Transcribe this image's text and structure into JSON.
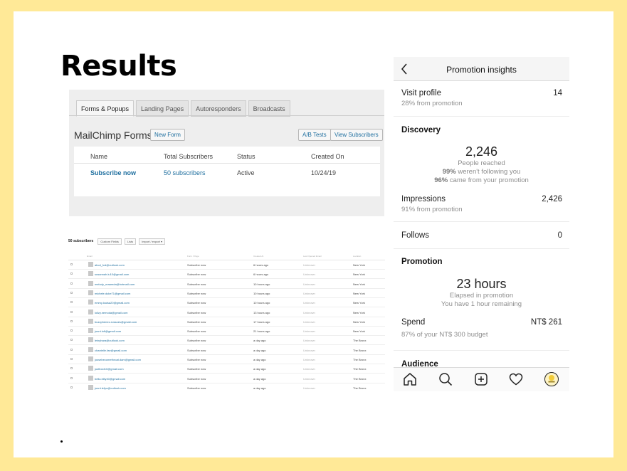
{
  "slide": {
    "title": "Results"
  },
  "mailchimp": {
    "tabs": [
      {
        "label": "Forms & Popups",
        "active": true
      },
      {
        "label": "Landing Pages",
        "active": false
      },
      {
        "label": "Autoresponders",
        "active": false
      },
      {
        "label": "Broadcasts",
        "active": false
      }
    ],
    "heading": "MailChimp Forms",
    "new_form": "New Form",
    "ab_tests": "A/B Tests",
    "view_subscribers": "View Subscribers",
    "columns": [
      "Name",
      "Total Subscribers",
      "Status",
      "Created On"
    ],
    "row": {
      "name": "Subscribe now",
      "subscribers": "50 subscribers",
      "status": "Active",
      "created": "10/24/19"
    }
  },
  "subscribers": {
    "count": "50 subscribers",
    "buttons": [
      "Custom Fields",
      "Lists",
      "Import / export ▾"
    ],
    "columns": [
      "Email",
      "Form / Page",
      "Created At",
      "Last Opened Email",
      "Location"
    ],
    "rows": [
      {
        "email": "abcd_fcd@outlook.com",
        "form": "Subscribe now",
        "created": "6 hours ago",
        "opened": "Unknown",
        "location": "New York"
      },
      {
        "email": "susannah.lu10@gmail.com",
        "form": "Subscribe now",
        "created": "6 hours ago",
        "opened": "Unknown",
        "location": "New York"
      },
      {
        "email": "melody_maamda@hotmail.com",
        "form": "Subscribe now",
        "created": "10 hours ago",
        "opened": "Unknown",
        "location": "New York"
      },
      {
        "email": "michele.duke71@gmail.com",
        "form": "Subscribe now",
        "created": "10 hours ago",
        "opened": "Unknown",
        "location": "New York"
      },
      {
        "email": "emmy.louisa20@gmail.com",
        "form": "Subscribe now",
        "created": "10 hours ago",
        "opened": "Unknown",
        "location": "New York"
      },
      {
        "email": "lolizy.nemoda@gmail.com",
        "form": "Subscribe now",
        "created": "13 hours ago",
        "opened": "Unknown",
        "location": "New York"
      },
      {
        "email": "buzzpheneo.russoes@gmail.com",
        "form": "Subscribe now",
        "created": "17 hours ago",
        "opened": "Unknown",
        "location": "New York"
      },
      {
        "email": "jonnt.lofi@gmail.com",
        "form": "Subscribe now",
        "created": "21 hours ago",
        "opened": "Unknown",
        "location": "New York"
      },
      {
        "email": "leinyhara@outlook.com",
        "form": "Subscribe now",
        "created": "a day ago",
        "opened": "Unknown",
        "location": "The Bronx"
      },
      {
        "email": "chantelle.fae@gmail.com",
        "form": "Subscribe now",
        "created": "a day ago",
        "opened": "Unknown",
        "location": "The Bronx"
      },
      {
        "email": "jossebecomethroat.dam@gmail.com",
        "form": "Subscribe now",
        "created": "a day ago",
        "opened": "Unknown",
        "location": "The Bronx"
      },
      {
        "email": "justfoxd10@gmail.com",
        "form": "Subscribe now",
        "created": "a day ago",
        "opened": "Unknown",
        "location": "The Bronx"
      },
      {
        "email": "bella.billy40@gmail.com",
        "form": "Subscribe now",
        "created": "a day ago",
        "opened": "Unknown",
        "location": "The Bronx"
      },
      {
        "email": "jonnt.lefyo@outlook.com",
        "form": "Subscribe now",
        "created": "a day ago",
        "opened": "Unknown",
        "location": "The Bronx"
      }
    ]
  },
  "insights": {
    "back_icon": "chevron-left-icon",
    "title": "Promotion insights",
    "visit_profile": {
      "label": "Visit profile",
      "value": "14",
      "sub": "28% from promotion"
    },
    "discovery": {
      "heading": "Discovery",
      "reach": "2,246",
      "reach_label": "People reached",
      "not_following_pct": "99%",
      "not_following_text": " weren't following you",
      "from_promo_pct": "96%",
      "from_promo_text": " came from your promotion"
    },
    "impressions": {
      "label": "Impressions",
      "value": "2,426",
      "sub": "91% from promotion"
    },
    "follows": {
      "label": "Follows",
      "value": "0"
    },
    "promotion": {
      "heading": "Promotion",
      "hours": "23 hours",
      "elapsed": "Elapsed in promotion",
      "remaining": "You have 1 hour remaining"
    },
    "spend": {
      "label": "Spend",
      "value": "NT$ 261",
      "sub": "87% of your NT$ 300 budget"
    },
    "audience_heading": "Audience",
    "nav_icons": [
      "home-icon",
      "search-icon",
      "add-post-icon",
      "heart-icon",
      "profile-avatar-icon"
    ]
  }
}
